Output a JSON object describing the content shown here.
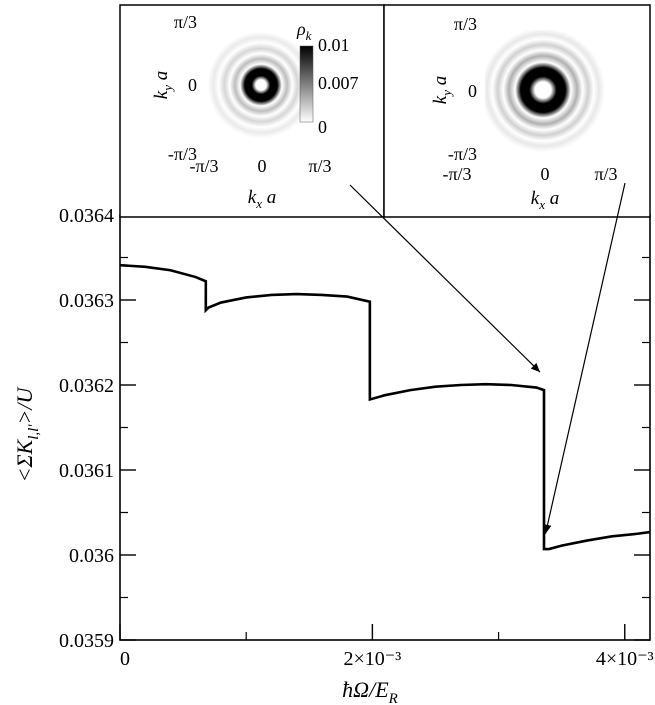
{
  "chart_data": {
    "type": "line",
    "xlabel": "ħΩ/E_R",
    "ylabel": "<ΣK_l,l'>/U",
    "xlim": [
      0,
      0.0042
    ],
    "ylim": [
      0.0359,
      0.0364
    ],
    "x_ticks": [
      {
        "value": 0,
        "label": "0"
      },
      {
        "value": 0.002,
        "label": "2×10⁻³"
      },
      {
        "value": 0.004,
        "label": "4×10⁻³"
      }
    ],
    "y_ticks": [
      {
        "value": 0.0359,
        "label": "0.0359"
      },
      {
        "value": 0.036,
        "label": "0.036"
      },
      {
        "value": 0.0361,
        "label": "0.0361"
      },
      {
        "value": 0.0362,
        "label": "0.0362"
      },
      {
        "value": 0.0363,
        "label": "0.0363"
      },
      {
        "value": 0.0364,
        "label": "0.0364"
      }
    ],
    "segments": [
      {
        "x": [
          0,
          0.0002,
          0.0004,
          0.0006,
          0.00068
        ],
        "y": [
          0.036341,
          0.036339,
          0.036335,
          0.036327,
          0.036322
        ]
      },
      {
        "x": [
          0.00068,
          0.0007,
          0.0008,
          0.001,
          0.0012,
          0.0014,
          0.0016,
          0.0018,
          0.00198
        ],
        "y": [
          0.036288,
          0.036291,
          0.036297,
          0.036303,
          0.036306,
          0.036307,
          0.036306,
          0.036304,
          0.036298
        ]
      },
      {
        "x": [
          0.00198,
          0.0021,
          0.0023,
          0.0025,
          0.0027,
          0.0029,
          0.0031,
          0.0033,
          0.00336
        ],
        "y": [
          0.036183,
          0.036188,
          0.036194,
          0.036198,
          0.0362,
          0.036201,
          0.0362,
          0.036197,
          0.036194
        ]
      },
      {
        "x": [
          0.00336,
          0.0034,
          0.0035,
          0.0037,
          0.0039,
          0.0041,
          0.0042
        ],
        "y": [
          0.036007,
          0.036007,
          0.036011,
          0.036017,
          0.036022,
          0.036025,
          0.036027
        ]
      }
    ],
    "grid": false,
    "line_color": "#000000",
    "insets": [
      {
        "xlabel": "k_x a",
        "ylabel": "k_y a",
        "x_tick_labels": [
          "-π/3",
          "0",
          "π/3"
        ],
        "y_tick_labels": [
          "-π/3",
          "0",
          "π/3"
        ],
        "colorbar": {
          "label": "ρ_k",
          "tick_labels": [
            "0.01",
            "0.007",
            "0"
          ]
        },
        "arrow_target": {
          "x": 0.00336,
          "y": 0.036194
        }
      },
      {
        "xlabel": "k_x a",
        "ylabel": "k_y a",
        "x_tick_labels": [
          "-π/3",
          "0",
          "π/3"
        ],
        "y_tick_labels": [
          "-π/3",
          "0",
          "π/3"
        ],
        "arrow_target": {
          "x": 0.00338,
          "y": 0.036011
        }
      }
    ]
  }
}
